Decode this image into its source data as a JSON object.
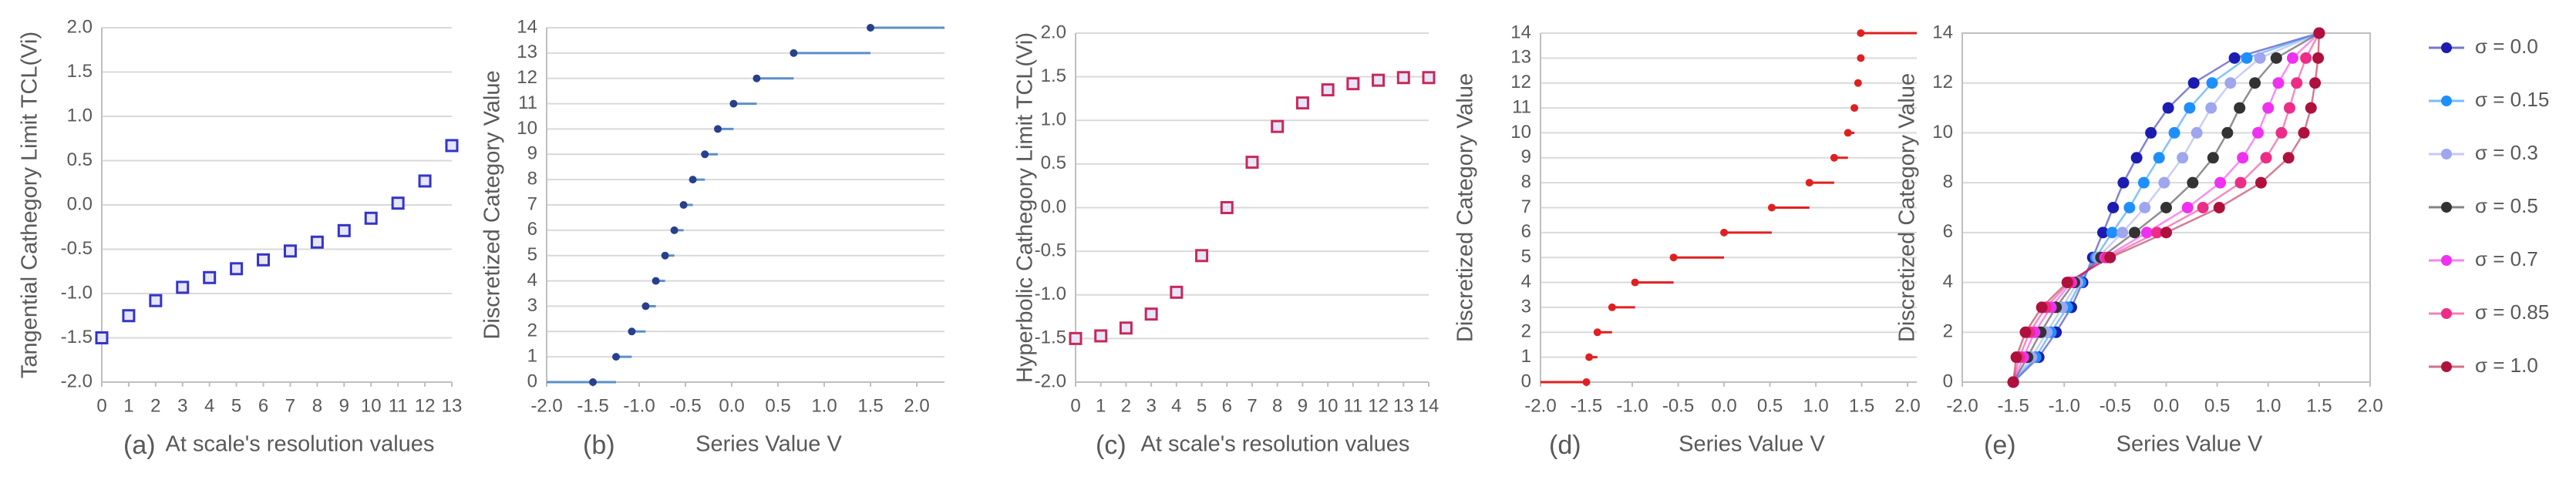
{
  "chart_data": [
    {
      "type": "scatter",
      "label": "(a)",
      "xlabel": "At scale's resolution values",
      "ylabel": "Tangential Cathegory Limit TCL(Vi)",
      "color": "#3434c8",
      "x": [
        0,
        1,
        2,
        3,
        4,
        5,
        6,
        7,
        8,
        9,
        10,
        11,
        12,
        13
      ],
      "values": [
        -1.5,
        -1.25,
        -1.08,
        -0.93,
        -0.82,
        -0.72,
        -0.62,
        -0.52,
        -0.42,
        -0.29,
        -0.15,
        0.02,
        0.27,
        0.67
      ],
      "xlim": [
        0,
        13
      ],
      "xticks": [
        0,
        1,
        2,
        3,
        4,
        5,
        6,
        7,
        8,
        9,
        10,
        11,
        12,
        13
      ],
      "ylim": [
        -2,
        2
      ],
      "yticks": [
        {
          "value": -2,
          "label": "-2.0"
        },
        -1.5,
        {
          "value": -1,
          "label": "-1.0"
        },
        -0.5,
        {
          "value": 0,
          "label": "0.0"
        },
        0.5,
        {
          "value": 1,
          "label": "1.0"
        },
        1.5,
        {
          "value": 2,
          "label": "2.0"
        }
      ],
      "grid": true
    },
    {
      "type": "step",
      "label": "(b)",
      "xlabel": "Series Value V",
      "ylabel": "Discretized Category Value",
      "color": "#27408b",
      "line_color": "#5b8fc9",
      "x": [
        -1.5,
        -1.25,
        -1.08,
        -0.93,
        -0.82,
        -0.72,
        -0.62,
        -0.52,
        -0.42,
        -0.29,
        -0.15,
        0.02,
        0.27,
        0.67,
        1.5
      ],
      "y": [
        0,
        1,
        2,
        3,
        4,
        5,
        6,
        7,
        8,
        9,
        10,
        11,
        12,
        13,
        14
      ],
      "xlim": [
        -2,
        2.3
      ],
      "xticks": [
        {
          "value": -2,
          "label": "-2.0"
        },
        -1.5,
        {
          "value": -1,
          "label": "-1.0"
        },
        -0.5,
        {
          "value": 0,
          "label": "0.0"
        },
        0.5,
        {
          "value": 1,
          "label": "1.0"
        },
        1.5,
        {
          "value": 2,
          "label": "2.0"
        }
      ],
      "ylim": [
        0,
        14
      ],
      "yticks": [
        0,
        1,
        2,
        3,
        4,
        5,
        6,
        7,
        8,
        9,
        10,
        11,
        12,
        13,
        14
      ],
      "grid": true
    },
    {
      "type": "scatter",
      "label": "(c)",
      "xlabel": "At scale's resolution values",
      "ylabel": "Hyperbolic Cathegory Limit TCL(Vi)",
      "color": "#c8285a",
      "x": [
        0,
        1,
        2,
        3,
        4,
        5,
        6,
        7,
        8,
        9,
        10,
        11,
        12,
        13,
        14
      ],
      "values": [
        -1.5,
        -1.47,
        -1.38,
        -1.22,
        -0.97,
        -0.55,
        0.0,
        0.52,
        0.93,
        1.2,
        1.35,
        1.42,
        1.46,
        1.49,
        1.49
      ],
      "xlim": [
        0,
        14
      ],
      "xticks": [
        0,
        1,
        2,
        3,
        4,
        5,
        6,
        7,
        8,
        9,
        10,
        11,
        12,
        13,
        14
      ],
      "ylim": [
        -2,
        2
      ],
      "yticks": [
        {
          "value": -2,
          "label": "-2.0"
        },
        -1.5,
        {
          "value": -1,
          "label": "-1.0"
        },
        -0.5,
        {
          "value": 0,
          "label": "0.0"
        },
        0.5,
        {
          "value": 1,
          "label": "1.0"
        },
        1.5,
        {
          "value": 2,
          "label": "2.0"
        }
      ],
      "grid": true
    },
    {
      "type": "step",
      "label": "(d)",
      "xlabel": "Series Value V",
      "ylabel": "Discretized Category Value",
      "color": "#e02020",
      "line_color": "#e02020",
      "x": [
        -1.5,
        -1.47,
        -1.38,
        -1.22,
        -0.97,
        -0.55,
        0.0,
        0.52,
        0.93,
        1.2,
        1.35,
        1.42,
        1.46,
        1.49,
        1.49
      ],
      "y": [
        0,
        1,
        2,
        3,
        4,
        5,
        6,
        7,
        8,
        9,
        10,
        11,
        12,
        13,
        14
      ],
      "xlim": [
        -2,
        2.1
      ],
      "xticks": [
        {
          "value": -2,
          "label": "-2.0"
        },
        -1.5,
        {
          "value": -1,
          "label": "-1.0"
        },
        -0.5,
        {
          "value": 0,
          "label": "0.0"
        },
        0.5,
        {
          "value": 1,
          "label": "1.0"
        },
        1.5,
        {
          "value": 2,
          "label": "2.0"
        }
      ],
      "ylim": [
        0,
        14
      ],
      "yticks": [
        0,
        1,
        2,
        3,
        4,
        5,
        6,
        7,
        8,
        9,
        10,
        11,
        12,
        13,
        14
      ],
      "grid": true
    },
    {
      "type": "multiline",
      "label": "(e)",
      "xlabel": "Series Value V",
      "ylabel": "Discretized Category Value",
      "y": [
        0,
        1,
        2,
        3,
        4,
        5,
        6,
        7,
        8,
        9,
        10,
        11,
        12,
        13,
        14
      ],
      "series": [
        {
          "name": "σ = 0.0",
          "color": "#1c1cb0",
          "x": [
            -1.5,
            -1.25,
            -1.08,
            -0.93,
            -0.82,
            -0.72,
            -0.62,
            -0.52,
            -0.42,
            -0.29,
            -0.15,
            0.02,
            0.27,
            0.67,
            1.5
          ]
        },
        {
          "name": "σ = 0.15",
          "color": "#1e8fff",
          "x": [
            -1.5,
            -1.28,
            -1.13,
            -0.97,
            -0.84,
            -0.69,
            -0.53,
            -0.36,
            -0.22,
            -0.07,
            0.08,
            0.23,
            0.45,
            0.79,
            1.5
          ]
        },
        {
          "name": "σ = 0.3",
          "color": "#9ea6ee",
          "x": [
            -1.5,
            -1.32,
            -1.17,
            -1.02,
            -0.87,
            -0.67,
            -0.43,
            -0.21,
            -0.02,
            0.16,
            0.3,
            0.44,
            0.63,
            0.92,
            1.5
          ]
        },
        {
          "name": "σ = 0.5",
          "color": "#333333",
          "x": [
            -1.5,
            -1.36,
            -1.23,
            -1.08,
            -0.9,
            -0.64,
            -0.31,
            0,
            0.26,
            0.46,
            0.6,
            0.72,
            0.87,
            1.08,
            1.5
          ]
        },
        {
          "name": "σ = 0.7",
          "color": "#f030f0",
          "x": [
            -1.5,
            -1.4,
            -1.29,
            -1.13,
            -0.93,
            -0.6,
            -0.19,
            0.21,
            0.53,
            0.75,
            0.9,
            1.0,
            1.1,
            1.24,
            1.5
          ]
        },
        {
          "name": "σ = 0.85",
          "color": "#ec2d88",
          "x": [
            -1.5,
            -1.44,
            -1.34,
            -1.18,
            -0.95,
            -0.58,
            -0.09,
            0.36,
            0.73,
            0.98,
            1.13,
            1.21,
            1.28,
            1.37,
            1.5
          ]
        },
        {
          "name": "σ = 1.0",
          "color": "#b0103c",
          "x": [
            -1.5,
            -1.47,
            -1.38,
            -1.22,
            -0.97,
            -0.55,
            0.0,
            0.52,
            0.93,
            1.2,
            1.35,
            1.42,
            1.46,
            1.49,
            1.5
          ]
        }
      ],
      "xlim": [
        -2,
        2
      ],
      "xticks": [
        {
          "value": -2,
          "label": "-2.0"
        },
        -1.5,
        {
          "value": -1,
          "label": "-1.0"
        },
        -0.5,
        {
          "value": 0,
          "label": "0.0"
        },
        0.5,
        {
          "value": 1,
          "label": "1.0"
        },
        1.5,
        {
          "value": 2,
          "label": "2.0"
        }
      ],
      "ylim": [
        0,
        14
      ],
      "yticks": [
        0,
        2,
        4,
        6,
        8,
        10,
        12,
        14
      ],
      "grid": true
    }
  ]
}
